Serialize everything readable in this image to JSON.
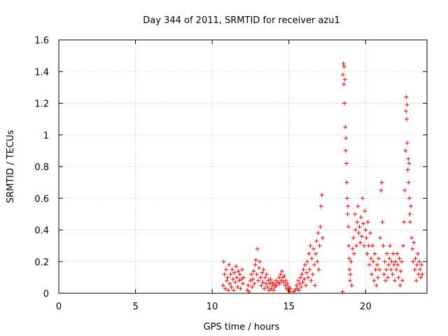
{
  "chart_data": {
    "type": "scatter",
    "title": "Day 344 of 2011, SRMTID for receiver azu1",
    "xlabel": "GPS time / hours",
    "ylabel": "SRMTID / TECUs",
    "xlim": [
      0,
      24
    ],
    "ylim": [
      0,
      1.6
    ],
    "xticks": [
      0,
      5,
      10,
      15,
      20
    ],
    "yticks": [
      0,
      0.2,
      0.4,
      0.6,
      0.8,
      1,
      1.2,
      1.4,
      1.6
    ],
    "ytick_labels": [
      "0",
      "0.2",
      "0.4",
      "0.6",
      "0.8",
      "1",
      "1.2",
      "1.4",
      "1.6"
    ],
    "grid": true,
    "marker": "+",
    "series_color": "#ff0000",
    "series": [
      {
        "name": "azu1",
        "points": [
          [
            10.7,
            0.05
          ],
          [
            10.75,
            0.2
          ],
          [
            10.8,
            0.12
          ],
          [
            10.85,
            0.03
          ],
          [
            10.9,
            0.15
          ],
          [
            10.95,
            0.08
          ],
          [
            11.0,
            0.1
          ],
          [
            11.05,
            0.02
          ],
          [
            11.1,
            0.18
          ],
          [
            11.15,
            0.06
          ],
          [
            11.2,
            0.12
          ],
          [
            11.25,
            0.04
          ],
          [
            11.3,
            0.15
          ],
          [
            11.35,
            0.09
          ],
          [
            11.4,
            0.02
          ],
          [
            11.45,
            0.13
          ],
          [
            11.5,
            0.07
          ],
          [
            11.55,
            0.17
          ],
          [
            11.6,
            0.1
          ],
          [
            11.65,
            0.04
          ],
          [
            11.7,
            0.14
          ],
          [
            11.75,
            0.08
          ],
          [
            11.8,
            0.12
          ],
          [
            11.85,
            0.03
          ],
          [
            11.9,
            0.09
          ],
          [
            11.95,
            0.15
          ],
          [
            12.0,
            0.06
          ],
          [
            12.05,
            0.1
          ],
          [
            12.3,
            0.02
          ],
          [
            12.35,
            0.05
          ],
          [
            12.4,
            0.01
          ],
          [
            12.5,
            0.08
          ],
          [
            12.55,
            0.12
          ],
          [
            12.6,
            0.04
          ],
          [
            12.65,
            0.09
          ],
          [
            12.7,
            0.14
          ],
          [
            12.75,
            0.06
          ],
          [
            12.8,
            0.18
          ],
          [
            12.85,
            0.21
          ],
          [
            12.9,
            0.12
          ],
          [
            12.95,
            0.28
          ],
          [
            13.0,
            0.08
          ],
          [
            13.05,
            0.16
          ],
          [
            13.1,
            0.2
          ],
          [
            13.15,
            0.1
          ],
          [
            13.2,
            0.05
          ],
          [
            13.25,
            0.13
          ],
          [
            13.3,
            0.07
          ],
          [
            13.35,
            0.15
          ],
          [
            13.4,
            0.03
          ],
          [
            13.45,
            0.1
          ],
          [
            13.5,
            0.06
          ],
          [
            13.55,
            0.12
          ],
          [
            13.6,
            0.04
          ],
          [
            13.65,
            0.08
          ],
          [
            13.7,
            0.02
          ],
          [
            13.75,
            0.06
          ],
          [
            13.8,
            0.09
          ],
          [
            13.85,
            0.03
          ],
          [
            13.9,
            0.07
          ],
          [
            13.95,
            0.05
          ],
          [
            14.0,
            0.02
          ],
          [
            14.05,
            0.06
          ],
          [
            14.1,
            0.04
          ],
          [
            14.15,
            0.08
          ],
          [
            14.2,
            0.05
          ],
          [
            14.3,
            0.07
          ],
          [
            14.35,
            0.1
          ],
          [
            14.4,
            0.06
          ],
          [
            14.45,
            0.12
          ],
          [
            14.5,
            0.08
          ],
          [
            14.55,
            0.14
          ],
          [
            14.6,
            0.1
          ],
          [
            14.65,
            0.07
          ],
          [
            14.7,
            0.11
          ],
          [
            14.75,
            0.05
          ],
          [
            14.8,
            0.08
          ],
          [
            14.85,
            0.03
          ],
          [
            14.9,
            0.06
          ],
          [
            14.95,
            0.02
          ],
          [
            15.0,
            0.04
          ],
          [
            15.05,
            0.01
          ],
          [
            15.1,
            0.03
          ],
          [
            15.3,
            0.01
          ],
          [
            15.4,
            0.02
          ],
          [
            15.5,
            0.05
          ],
          [
            15.55,
            0.03
          ],
          [
            15.6,
            0.08
          ],
          [
            15.65,
            0.02
          ],
          [
            15.7,
            0.06
          ],
          [
            15.75,
            0.1
          ],
          [
            15.8,
            0.04
          ],
          [
            15.85,
            0.12
          ],
          [
            15.9,
            0.07
          ],
          [
            15.95,
            0.15
          ],
          [
            16.0,
            0.09
          ],
          [
            16.05,
            0.18
          ],
          [
            16.1,
            0.05
          ],
          [
            16.15,
            0.13
          ],
          [
            16.2,
            0.2
          ],
          [
            16.25,
            0.1
          ],
          [
            16.3,
            0.25
          ],
          [
            16.35,
            0.15
          ],
          [
            16.4,
            0.3
          ],
          [
            16.45,
            0.08
          ],
          [
            16.5,
            0.22
          ],
          [
            16.55,
            0.12
          ],
          [
            16.6,
            0.28
          ],
          [
            16.65,
            0.18
          ],
          [
            16.7,
            0.05
          ],
          [
            16.75,
            0.25
          ],
          [
            16.8,
            0.33
          ],
          [
            16.85,
            0.2
          ],
          [
            16.9,
            0.38
          ],
          [
            16.95,
            0.15
          ],
          [
            17.0,
            0.3
          ],
          [
            17.05,
            0.42
          ],
          [
            17.1,
            0.55
          ],
          [
            17.15,
            0.62
          ],
          [
            17.2,
            0.35
          ],
          [
            18.5,
            0.01
          ],
          [
            18.52,
            1.38
          ],
          [
            18.55,
            1.45
          ],
          [
            18.58,
            1.32
          ],
          [
            18.6,
            1.43
          ],
          [
            18.62,
            1.2
          ],
          [
            18.65,
            1.35
          ],
          [
            18.68,
            1.05
          ],
          [
            18.7,
            0.9
          ],
          [
            18.72,
            0.98
          ],
          [
            18.75,
            0.82
          ],
          [
            18.78,
            0.7
          ],
          [
            18.8,
            0.6
          ],
          [
            18.82,
            0.5
          ],
          [
            18.85,
            0.55
          ],
          [
            18.88,
            0.42
          ],
          [
            18.9,
            0.3
          ],
          [
            18.93,
            0.22
          ],
          [
            18.95,
            0.15
          ],
          [
            18.98,
            0.08
          ],
          [
            19.0,
            0.12
          ],
          [
            19.05,
            0.2
          ],
          [
            19.1,
            0.05
          ],
          [
            19.15,
            0.28
          ],
          [
            19.2,
            0.35
          ],
          [
            19.25,
            0.25
          ],
          [
            19.3,
            0.5
          ],
          [
            19.35,
            0.4
          ],
          [
            19.4,
            0.3
          ],
          [
            19.45,
            0.45
          ],
          [
            19.5,
            0.55
          ],
          [
            19.55,
            0.38
          ],
          [
            19.6,
            0.42
          ],
          [
            19.65,
            0.32
          ],
          [
            19.7,
            0.48
          ],
          [
            19.75,
            0.36
          ],
          [
            19.8,
            0.6
          ],
          [
            19.85,
            0.44
          ],
          [
            19.9,
            0.3
          ],
          [
            19.95,
            0.52
          ],
          [
            20.0,
            0.4
          ],
          [
            20.05,
            0.35
          ],
          [
            20.1,
            0.25
          ],
          [
            20.15,
            0.45
          ],
          [
            20.2,
            0.3
          ],
          [
            20.25,
            0.18
          ],
          [
            20.3,
            0.38
          ],
          [
            20.35,
            0.22
          ],
          [
            20.4,
            0.12
          ],
          [
            20.45,
            0.3
          ],
          [
            20.5,
            0.2
          ],
          [
            20.55,
            0.08
          ],
          [
            20.6,
            0.25
          ],
          [
            20.65,
            0.15
          ],
          [
            20.7,
            0.05
          ],
          [
            20.75,
            0.18
          ],
          [
            20.8,
            0.1
          ],
          [
            20.85,
            0.22
          ],
          [
            20.9,
            0.15
          ],
          [
            20.95,
            0.35
          ],
          [
            21.0,
            0.65
          ],
          [
            21.05,
            0.7
          ],
          [
            21.1,
            0.45
          ],
          [
            21.15,
            0.3
          ],
          [
            21.2,
            0.12
          ],
          [
            21.25,
            0.2
          ],
          [
            21.3,
            0.08
          ],
          [
            21.35,
            0.15
          ],
          [
            21.4,
            0.25
          ],
          [
            21.45,
            0.1
          ],
          [
            21.5,
            0.18
          ],
          [
            21.55,
            0.22
          ],
          [
            21.6,
            0.3
          ],
          [
            21.65,
            0.15
          ],
          [
            21.7,
            0.2
          ],
          [
            21.75,
            0.12
          ],
          [
            21.8,
            0.25
          ],
          [
            21.85,
            0.18
          ],
          [
            21.9,
            0.08
          ],
          [
            21.95,
            0.2
          ],
          [
            22.0,
            0.15
          ],
          [
            22.05,
            0.25
          ],
          [
            22.1,
            0.18
          ],
          [
            22.15,
            0.1
          ],
          [
            22.2,
            0.22
          ],
          [
            22.25,
            0.05
          ],
          [
            22.3,
            0.14
          ],
          [
            22.35,
            0.2
          ],
          [
            22.4,
            0.08
          ],
          [
            22.45,
            0.3
          ],
          [
            22.5,
            0.45
          ],
          [
            22.55,
            0.65
          ],
          [
            22.6,
            0.9
          ],
          [
            22.63,
            1.15
          ],
          [
            22.65,
            1.24
          ],
          [
            22.68,
            1.1
          ],
          [
            22.7,
            1.19
          ],
          [
            22.72,
            0.95
          ],
          [
            22.75,
            0.78
          ],
          [
            22.78,
            0.85
          ],
          [
            22.8,
            0.7
          ],
          [
            22.83,
            0.82
          ],
          [
            22.85,
            0.6
          ],
          [
            22.88,
            0.5
          ],
          [
            22.9,
            0.45
          ],
          [
            22.95,
            0.55
          ],
          [
            23.0,
            0.35
          ],
          [
            23.05,
            0.28
          ],
          [
            23.1,
            0.2
          ],
          [
            23.15,
            0.32
          ],
          [
            23.2,
            0.15
          ],
          [
            23.25,
            0.22
          ],
          [
            23.3,
            0.08
          ],
          [
            23.35,
            0.18
          ],
          [
            23.4,
            0.25
          ],
          [
            23.45,
            0.12
          ],
          [
            23.5,
            0.2
          ],
          [
            23.55,
            0.15
          ],
          [
            23.6,
            0.1
          ],
          [
            23.65,
            0.18
          ],
          [
            23.7,
            0.12
          ]
        ]
      }
    ]
  }
}
